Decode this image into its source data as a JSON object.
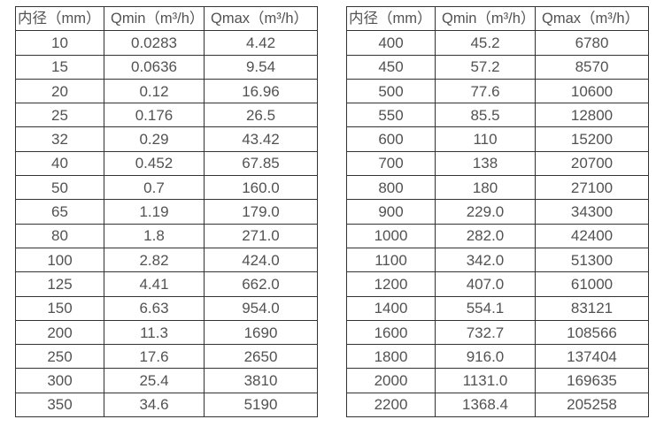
{
  "page": {
    "background_color": "#ffffff",
    "text_color": "#525252",
    "border_color": "#333333"
  },
  "tables": [
    {
      "name": "flow-rate-table-small-diameters",
      "headers": [
        "内径（mm）",
        "Qmin（m³/h）",
        "Qmax（m³/h）"
      ],
      "rows": [
        [
          "10",
          "0.0283",
          "4.42"
        ],
        [
          "15",
          "0.0636",
          "9.54"
        ],
        [
          "20",
          "0.12",
          "16.96"
        ],
        [
          "25",
          "0.176",
          "26.5"
        ],
        [
          "32",
          "0.29",
          "43.42"
        ],
        [
          "40",
          "0.452",
          "67.85"
        ],
        [
          "50",
          "0.7",
          "160.0"
        ],
        [
          "65",
          "1.19",
          "179.0"
        ],
        [
          "80",
          "1.8",
          "271.0"
        ],
        [
          "100",
          "2.82",
          "424.0"
        ],
        [
          "125",
          "4.41",
          "662.0"
        ],
        [
          "150",
          "6.63",
          "954.0"
        ],
        [
          "200",
          "11.3",
          "1690"
        ],
        [
          "250",
          "17.6",
          "2650"
        ],
        [
          "300",
          "25.4",
          "3810"
        ],
        [
          "350",
          "34.6",
          "5190"
        ]
      ]
    },
    {
      "name": "flow-rate-table-large-diameters",
      "headers": [
        "内径（mm）",
        "Qmin（m³/h）",
        "Qmax（m³/h）"
      ],
      "rows": [
        [
          "400",
          "45.2",
          "6780"
        ],
        [
          "450",
          "57.2",
          "8570"
        ],
        [
          "500",
          "77.6",
          "10600"
        ],
        [
          "550",
          "85.5",
          "12800"
        ],
        [
          "600",
          "110",
          "15200"
        ],
        [
          "700",
          "138",
          "20700"
        ],
        [
          "800",
          "180",
          "27100"
        ],
        [
          "900",
          "229.0",
          "34300"
        ],
        [
          "1000",
          "282.0",
          "42400"
        ],
        [
          "1100",
          "342.0",
          "51300"
        ],
        [
          "1200",
          "407.0",
          "61000"
        ],
        [
          "1400",
          "554.1",
          "83121"
        ],
        [
          "1600",
          "732.7",
          "108566"
        ],
        [
          "1800",
          "916.0",
          "137404"
        ],
        [
          "2000",
          "1131.0",
          "169635"
        ],
        [
          "2200",
          "1368.4",
          "205258"
        ]
      ]
    }
  ]
}
